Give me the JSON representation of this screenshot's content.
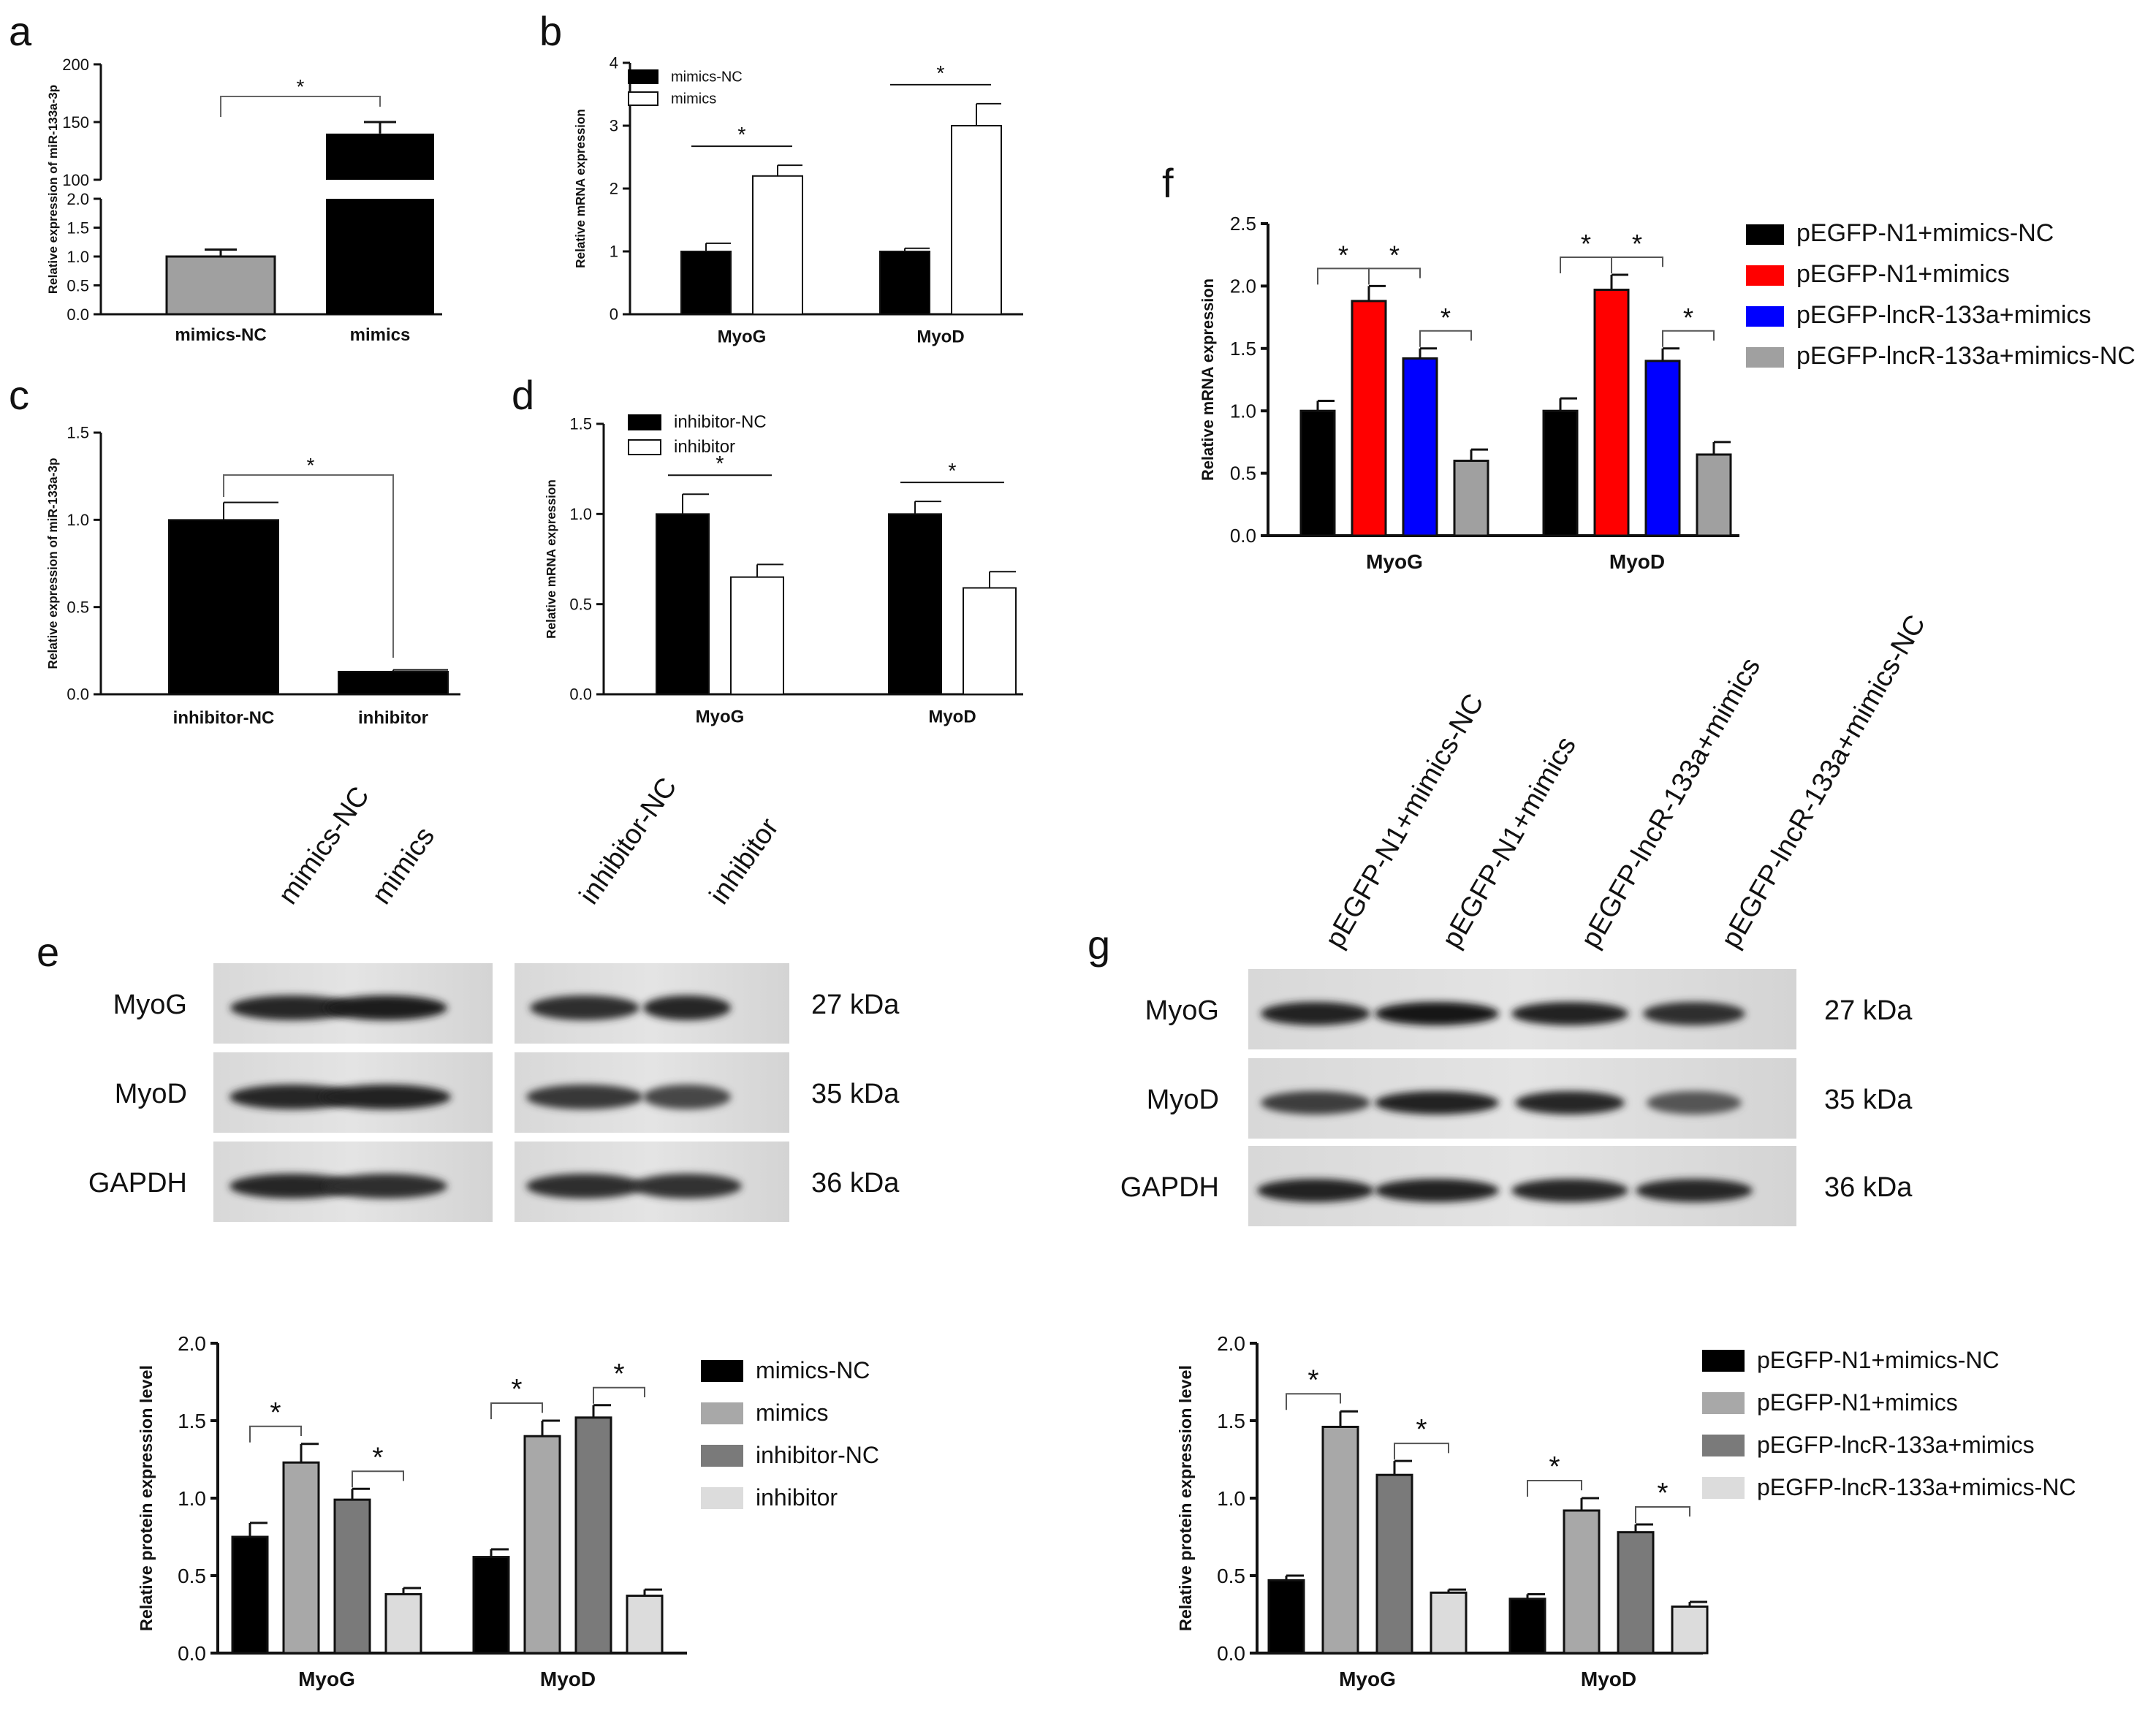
{
  "panel_labels": {
    "a": "a",
    "b": "b",
    "c": "c",
    "d": "d",
    "e": "e",
    "f": "f",
    "g": "g"
  },
  "colors": {
    "black": "#000000",
    "red": "#ff0000",
    "blue": "#0000ff",
    "gray": "#a0a0a0",
    "light_gray": "#c8c8c8",
    "mid_gray": "#a8a8a8",
    "dark_gray": "#7a7a7a",
    "pale_gray": "#dcdcdc",
    "white": "#ffffff"
  },
  "chart_data": [
    {
      "id": "a",
      "type": "bar",
      "ylabel": "Relative expression of miR-133a-3p",
      "categories": [
        "mimics-NC",
        "mimics"
      ],
      "values": [
        1.0,
        140
      ],
      "errors": [
        0.12,
        10
      ],
      "fills": [
        "#a0a0a0",
        "#000000"
      ],
      "broken_axis": {
        "lower_ylim": [
          0,
          2
        ],
        "upper_ylim": [
          100,
          200
        ]
      },
      "lower_ticks": [
        "0.0",
        "0.5",
        "1.0",
        "1.5",
        "2.0"
      ],
      "upper_ticks": [
        "100",
        "150",
        "200"
      ],
      "significance": [
        {
          "from": 0,
          "to": 1,
          "label": "*"
        }
      ]
    },
    {
      "id": "b",
      "type": "bar",
      "ylabel": "Relative mRNA expression",
      "categories": [
        "MyoG",
        "MyoD"
      ],
      "series": [
        {
          "name": "mimics-NC",
          "values": [
            1.0,
            1.0
          ],
          "errors": [
            0.13,
            0.05
          ],
          "fill": "#000000"
        },
        {
          "name": "mimics",
          "values": [
            2.2,
            3.0
          ],
          "errors": [
            0.17,
            0.35
          ],
          "fill": "#ffffff"
        }
      ],
      "ylim": [
        0,
        4
      ],
      "ticks": [
        "0",
        "1",
        "2",
        "3",
        "4"
      ],
      "significance": [
        {
          "group": 0,
          "from": 0,
          "to": 1,
          "label": "*"
        },
        {
          "group": 1,
          "from": 0,
          "to": 1,
          "label": "*"
        }
      ]
    },
    {
      "id": "c",
      "type": "bar",
      "ylabel": "Relative expression of miR-133a-3p",
      "categories": [
        "inhibitor-NC",
        "inhibitor"
      ],
      "values": [
        1.0,
        0.13
      ],
      "errors": [
        0.1,
        0.01
      ],
      "fills": [
        "#000000",
        "#000000"
      ],
      "ylim": [
        0,
        1.5
      ],
      "ticks": [
        "0.0",
        "0.5",
        "1.0",
        "1.5"
      ],
      "significance": [
        {
          "from": 0,
          "to": 1,
          "label": "*"
        }
      ]
    },
    {
      "id": "d",
      "type": "bar",
      "ylabel": "Relative mRNA expression",
      "categories": [
        "MyoG",
        "MyoD"
      ],
      "series": [
        {
          "name": "inhibitor-NC",
          "values": [
            1.0,
            1.0
          ],
          "errors": [
            0.11,
            0.07
          ],
          "fill": "#000000"
        },
        {
          "name": "inhibitor",
          "values": [
            0.65,
            0.59
          ],
          "errors": [
            0.07,
            0.09
          ],
          "fill": "#ffffff"
        }
      ],
      "ylim": [
        0,
        1.5
      ],
      "ticks": [
        "0.0",
        "0.5",
        "1.0",
        "1.5"
      ],
      "significance": [
        {
          "group": 0,
          "from": 0,
          "to": 1,
          "label": "*"
        },
        {
          "group": 1,
          "from": 0,
          "to": 1,
          "label": "*"
        }
      ]
    },
    {
      "id": "f",
      "type": "bar",
      "ylabel": "Relative mRNA expression",
      "categories": [
        "MyoG",
        "MyoD"
      ],
      "series": [
        {
          "name": "pEGFP-N1+mimics-NC",
          "values": [
            1.0,
            1.0
          ],
          "errors": [
            0.08,
            0.1
          ],
          "fill": "#000000"
        },
        {
          "name": "pEGFP-N1+mimics",
          "values": [
            1.88,
            1.97
          ],
          "errors": [
            0.12,
            0.12
          ],
          "fill": "#ff0000"
        },
        {
          "name": "pEGFP-lncR-133a+mimics",
          "values": [
            1.42,
            1.4
          ],
          "errors": [
            0.08,
            0.1
          ],
          "fill": "#0000ff"
        },
        {
          "name": "pEGFP-lncR-133a+mimics-NC",
          "values": [
            0.6,
            0.65
          ],
          "errors": [
            0.09,
            0.1
          ],
          "fill": "#a0a0a0"
        }
      ],
      "ylim": [
        0,
        2.5
      ],
      "ticks": [
        "0.0",
        "0.5",
        "1.0",
        "1.5",
        "2.0",
        "2.5"
      ],
      "significance": [
        {
          "group": 0,
          "from": 0,
          "to": 1,
          "label": "*"
        },
        {
          "group": 0,
          "from": 1,
          "to": 2,
          "label": "*"
        },
        {
          "group": 0,
          "from": 2,
          "to": 3,
          "label": "*"
        },
        {
          "group": 1,
          "from": 0,
          "to": 1,
          "label": "*"
        },
        {
          "group": 1,
          "from": 1,
          "to": 2,
          "label": "*"
        },
        {
          "group": 1,
          "from": 2,
          "to": 3,
          "label": "*"
        }
      ]
    },
    {
      "id": "e-quant",
      "type": "bar",
      "ylabel": "Relative protein expression level",
      "categories": [
        "MyoG",
        "MyoD"
      ],
      "series": [
        {
          "name": "mimics-NC",
          "values": [
            0.75,
            0.62
          ],
          "errors": [
            0.09,
            0.05
          ],
          "fill": "#000000"
        },
        {
          "name": "mimics",
          "values": [
            1.23,
            1.4
          ],
          "errors": [
            0.12,
            0.1
          ],
          "fill": "#a8a8a8"
        },
        {
          "name": "inhibitor-NC",
          "values": [
            0.99,
            1.52
          ],
          "errors": [
            0.07,
            0.08
          ],
          "fill": "#7a7a7a"
        },
        {
          "name": "inhibitor",
          "values": [
            0.38,
            0.37
          ],
          "errors": [
            0.04,
            0.04
          ],
          "fill": "#dcdcdc"
        }
      ],
      "ylim": [
        0,
        2.0
      ],
      "ticks": [
        "0.0",
        "0.5",
        "1.0",
        "1.5",
        "2.0"
      ],
      "significance": [
        {
          "group": 0,
          "from": 0,
          "to": 1,
          "label": "*"
        },
        {
          "group": 0,
          "from": 2,
          "to": 3,
          "label": "*"
        },
        {
          "group": 1,
          "from": 0,
          "to": 1,
          "label": "*"
        },
        {
          "group": 1,
          "from": 2,
          "to": 3,
          "label": "*"
        }
      ]
    },
    {
      "id": "g-quant",
      "type": "bar",
      "ylabel": "Relative protein expression level",
      "categories": [
        "MyoG",
        "MyoD"
      ],
      "series": [
        {
          "name": "pEGFP-N1+mimics-NC",
          "values": [
            0.47,
            0.35
          ],
          "errors": [
            0.03,
            0.03
          ],
          "fill": "#000000"
        },
        {
          "name": "pEGFP-N1+mimics",
          "values": [
            1.46,
            0.92
          ],
          "errors": [
            0.1,
            0.08
          ],
          "fill": "#a8a8a8"
        },
        {
          "name": "pEGFP-lncR-133a+mimics",
          "values": [
            1.15,
            0.78
          ],
          "errors": [
            0.09,
            0.05
          ],
          "fill": "#7a7a7a"
        },
        {
          "name": "pEGFP-lncR-133a+mimics-NC",
          "values": [
            0.39,
            0.3
          ],
          "errors": [
            0.02,
            0.03
          ],
          "fill": "#dcdcdc"
        }
      ],
      "ylim": [
        0,
        2.0
      ],
      "ticks": [
        "0.0",
        "0.5",
        "1.0",
        "1.5",
        "2.0"
      ],
      "significance": [
        {
          "group": 0,
          "from": 0,
          "to": 1,
          "label": "*"
        },
        {
          "group": 0,
          "from": 2,
          "to": 3,
          "label": "*"
        },
        {
          "group": 1,
          "from": 0,
          "to": 1,
          "label": "*"
        },
        {
          "group": 1,
          "from": 2,
          "to": 3,
          "label": "*"
        }
      ]
    }
  ],
  "blots": {
    "e": {
      "lanes_left": [
        "mimics-NC",
        "mimics"
      ],
      "lanes_right": [
        "inhibitor-NC",
        "inhibitor"
      ],
      "rows": [
        {
          "protein": "MyoG",
          "size": "27 kDa"
        },
        {
          "protein": "MyoD",
          "size": "35 kDa"
        },
        {
          "protein": "GAPDH",
          "size": "36 kDa"
        }
      ]
    },
    "g": {
      "lanes": [
        "pEGFP-N1+mimics-NC",
        "pEGFP-N1+mimics",
        "pEGFP-lncR-133a+mimics",
        "pEGFP-lncR-133a+mimics-NC"
      ],
      "rows": [
        {
          "protein": "MyoG",
          "size": "27 kDa"
        },
        {
          "protein": "MyoD",
          "size": "35 kDa"
        },
        {
          "protein": "GAPDH",
          "size": "36 kDa"
        }
      ]
    }
  }
}
